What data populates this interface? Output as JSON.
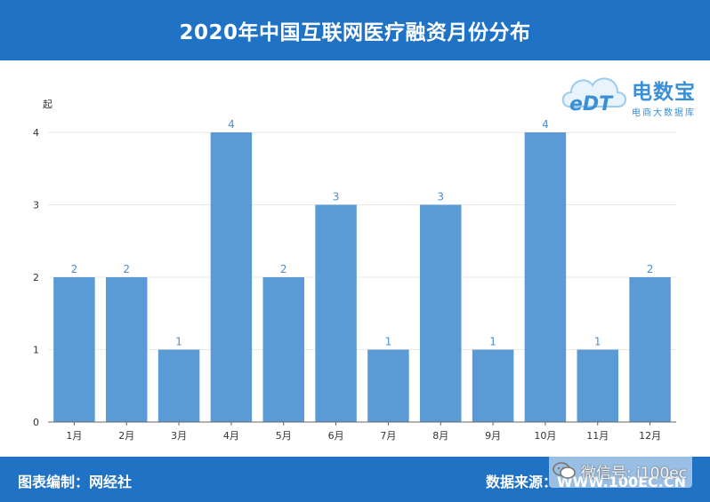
{
  "header": {
    "title": "2020年中国互联网医疗融资月份分布"
  },
  "logo": {
    "mark": "eDT",
    "brand": "电数宝",
    "sub": "电商大数据库"
  },
  "footer": {
    "left": "图表编制：网经社",
    "right": "数据来源：WWW.100EC.CN",
    "wechat": "微信号: i100ec"
  },
  "colors": {
    "header": "#1f72c4",
    "bar": "#5b9bd5",
    "label": "#4a8fce"
  },
  "chart_data": {
    "type": "bar",
    "title": "2020年中国互联网医疗融资月份分布",
    "ylabel": "起",
    "xlabel": "",
    "ylim": [
      0,
      4
    ],
    "yticks": [
      0,
      1,
      2,
      3,
      4
    ],
    "categories": [
      "1月",
      "2月",
      "3月",
      "4月",
      "5月",
      "6月",
      "7月",
      "8月",
      "9月",
      "10月",
      "11月",
      "12月"
    ],
    "values": [
      2,
      2,
      1,
      4,
      2,
      3,
      1,
      3,
      1,
      4,
      1,
      2
    ],
    "data_labels": true,
    "grid": true
  }
}
